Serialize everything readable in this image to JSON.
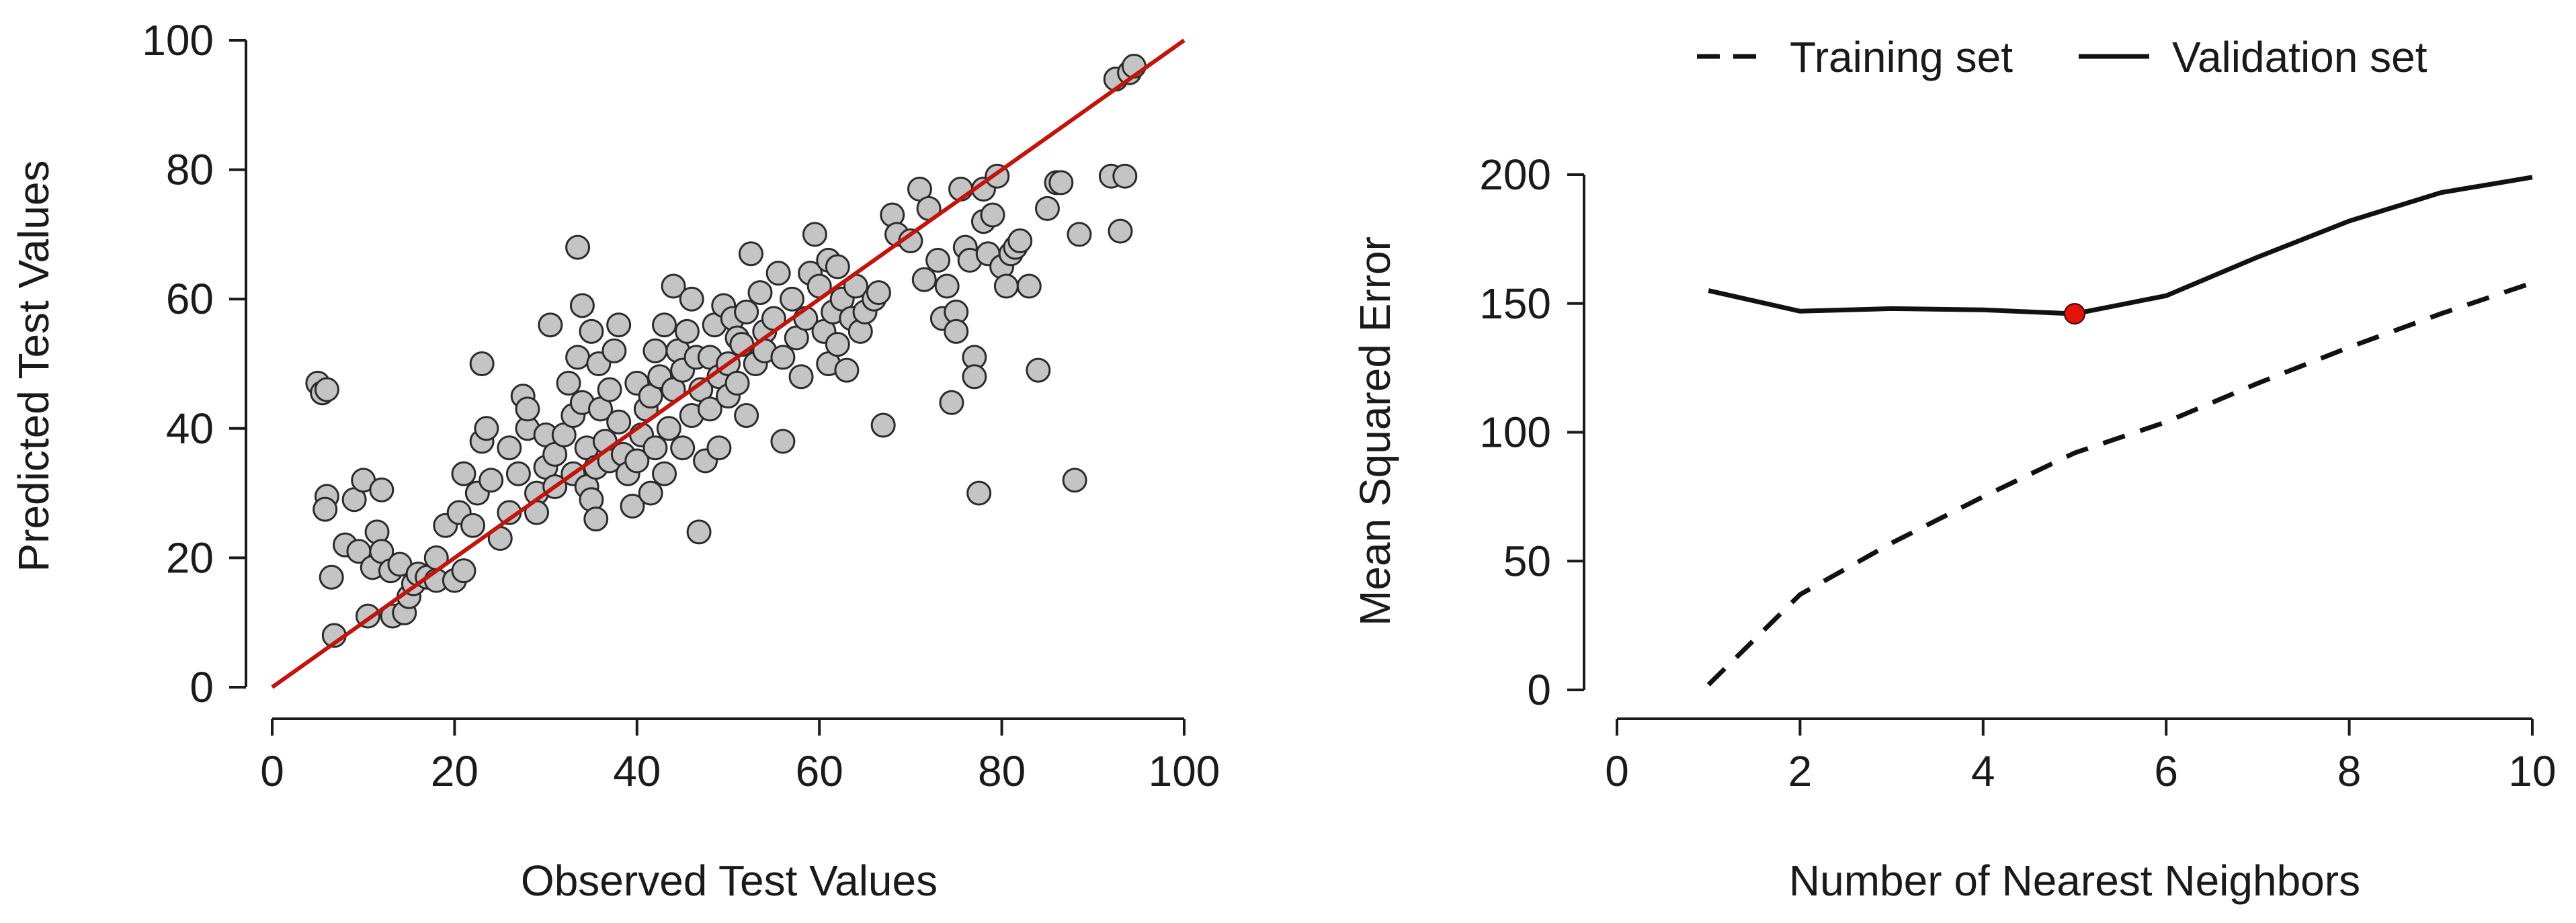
{
  "colors": {
    "point_fill": "#c4c4c4",
    "point_stroke": "#2b2b2b",
    "identity_line": "#c0140c",
    "curve": "#111111",
    "highlight": "#e3120b"
  },
  "chart_data": [
    {
      "type": "scatter",
      "xlabel": "Observed Test Values",
      "ylabel": "Predicted Test Values",
      "xlim": [
        0,
        100
      ],
      "ylim": [
        0,
        100
      ],
      "xticks": [
        0,
        20,
        40,
        60,
        80,
        100
      ],
      "yticks": [
        0,
        20,
        40,
        60,
        80,
        100
      ],
      "grid": false,
      "reference_line": {
        "from": [
          0,
          0
        ],
        "to": [
          100,
          100
        ],
        "label": ""
      },
      "points": [
        [
          5,
          47
        ],
        [
          5.5,
          45.5
        ],
        [
          6,
          46
        ],
        [
          6,
          29.5
        ],
        [
          5.8,
          27.5
        ],
        [
          6.5,
          17
        ],
        [
          6.8,
          8
        ],
        [
          8,
          22
        ],
        [
          9,
          29
        ],
        [
          10,
          32
        ],
        [
          9.5,
          21
        ],
        [
          10.5,
          11
        ],
        [
          11,
          18.5
        ],
        [
          11.5,
          24
        ],
        [
          12,
          30.5
        ],
        [
          12,
          21
        ],
        [
          13,
          18
        ],
        [
          13.2,
          11
        ],
        [
          14,
          19
        ],
        [
          14.5,
          11.5
        ],
        [
          15,
          14
        ],
        [
          15.5,
          16
        ],
        [
          16,
          17.5
        ],
        [
          17,
          17
        ],
        [
          18,
          20
        ],
        [
          18,
          16.5
        ],
        [
          19,
          25
        ],
        [
          20,
          16.5
        ],
        [
          20.5,
          27
        ],
        [
          21,
          18
        ],
        [
          21,
          33
        ],
        [
          22,
          25
        ],
        [
          22.5,
          30
        ],
        [
          23,
          38
        ],
        [
          23.5,
          40
        ],
        [
          23,
          50
        ],
        [
          24,
          32
        ],
        [
          25,
          23
        ],
        [
          26,
          37
        ],
        [
          26,
          27
        ],
        [
          27,
          33
        ],
        [
          27.5,
          45
        ],
        [
          28,
          40
        ],
        [
          28,
          43
        ],
        [
          29,
          30
        ],
        [
          29,
          27
        ],
        [
          30,
          34
        ],
        [
          30,
          39
        ],
        [
          30.5,
          56
        ],
        [
          31,
          31
        ],
        [
          31,
          36
        ],
        [
          32,
          39
        ],
        [
          32.5,
          47
        ],
        [
          33,
          33
        ],
        [
          33,
          42
        ],
        [
          33.5,
          51
        ],
        [
          33.5,
          68
        ],
        [
          34,
          44
        ],
        [
          34,
          59
        ],
        [
          34.5,
          37
        ],
        [
          34.5,
          31
        ],
        [
          35,
          55
        ],
        [
          35,
          29
        ],
        [
          35.5,
          34
        ],
        [
          35.5,
          26
        ],
        [
          35.8,
          50
        ],
        [
          36,
          43
        ],
        [
          36.5,
          38
        ],
        [
          37,
          46
        ],
        [
          37,
          35
        ],
        [
          37.5,
          52
        ],
        [
          38,
          41
        ],
        [
          38,
          56
        ],
        [
          38.5,
          36
        ],
        [
          39,
          33
        ],
        [
          39.5,
          28
        ],
        [
          40,
          47
        ],
        [
          40,
          35
        ],
        [
          40.5,
          39
        ],
        [
          41,
          43
        ],
        [
          41.5,
          45
        ],
        [
          41.5,
          30
        ],
        [
          42,
          37
        ],
        [
          42,
          52
        ],
        [
          42.5,
          48
        ],
        [
          43,
          33
        ],
        [
          43,
          56
        ],
        [
          43.5,
          40
        ],
        [
          44,
          46
        ],
        [
          44,
          62
        ],
        [
          44.5,
          52
        ],
        [
          45,
          49
        ],
        [
          45,
          37
        ],
        [
          45.5,
          55
        ],
        [
          46,
          42
        ],
        [
          46,
          60
        ],
        [
          46.5,
          51
        ],
        [
          46.8,
          24
        ],
        [
          47,
          46
        ],
        [
          47.5,
          35
        ],
        [
          48,
          51
        ],
        [
          48,
          43
        ],
        [
          48.5,
          56
        ],
        [
          49,
          48
        ],
        [
          49,
          37
        ],
        [
          49.5,
          59
        ],
        [
          50,
          50
        ],
        [
          50,
          45
        ],
        [
          50.5,
          57
        ],
        [
          51,
          47
        ],
        [
          51,
          54
        ],
        [
          51.5,
          53
        ],
        [
          52,
          58
        ],
        [
          52,
          42
        ],
        [
          52.5,
          67
        ],
        [
          53,
          50
        ],
        [
          53.5,
          61
        ],
        [
          54,
          55
        ],
        [
          54,
          52
        ],
        [
          55,
          57
        ],
        [
          55.5,
          64
        ],
        [
          56,
          38
        ],
        [
          56,
          51
        ],
        [
          57,
          60
        ],
        [
          57.5,
          54
        ],
        [
          58,
          48
        ],
        [
          58.5,
          57
        ],
        [
          59,
          64
        ],
        [
          59.5,
          70
        ],
        [
          60,
          62
        ],
        [
          60.5,
          55
        ],
        [
          61,
          66
        ],
        [
          61,
          50
        ],
        [
          61.5,
          58
        ],
        [
          62,
          53
        ],
        [
          62,
          65
        ],
        [
          62.5,
          60
        ],
        [
          63,
          49
        ],
        [
          63.5,
          57
        ],
        [
          64,
          62
        ],
        [
          64.5,
          55
        ],
        [
          65,
          58
        ],
        [
          66,
          60
        ],
        [
          66.5,
          61
        ],
        [
          67,
          40.5
        ],
        [
          68,
          73
        ],
        [
          68.5,
          70
        ],
        [
          70,
          69
        ],
        [
          71,
          77
        ],
        [
          71.5,
          63
        ],
        [
          72,
          74
        ],
        [
          73,
          66
        ],
        [
          73.5,
          57
        ],
        [
          74,
          62
        ],
        [
          74.5,
          44
        ],
        [
          75,
          58
        ],
        [
          75,
          55
        ],
        [
          75.5,
          77
        ],
        [
          76,
          68
        ],
        [
          76.5,
          66
        ],
        [
          77,
          51
        ],
        [
          77,
          48
        ],
        [
          77.5,
          30
        ],
        [
          78,
          72
        ],
        [
          78,
          77
        ],
        [
          78.5,
          67
        ],
        [
          79,
          73
        ],
        [
          79.5,
          79
        ],
        [
          80,
          65
        ],
        [
          80.5,
          62
        ],
        [
          81,
          67
        ],
        [
          81.5,
          68
        ],
        [
          82,
          69
        ],
        [
          83,
          62
        ],
        [
          84,
          49
        ],
        [
          85,
          74
        ],
        [
          86,
          78
        ],
        [
          86.5,
          78
        ],
        [
          88,
          32
        ],
        [
          88.5,
          70
        ],
        [
          92,
          79
        ],
        [
          92.5,
          94
        ],
        [
          93,
          70.5
        ],
        [
          93.5,
          79
        ],
        [
          94,
          95
        ],
        [
          94.5,
          96
        ]
      ]
    },
    {
      "type": "line",
      "xlabel": "Number of Nearest Neighbors",
      "ylabel": "Mean Squared Error",
      "xlim": [
        0,
        10
      ],
      "ylim": [
        0,
        200
      ],
      "xticks": [
        0,
        2,
        4,
        6,
        8,
        10
      ],
      "yticks": [
        0,
        50,
        100,
        150,
        200
      ],
      "grid": false,
      "legend_position": "top",
      "series": [
        {
          "name": "Training set",
          "style": "dashed",
          "x": [
            1,
            2,
            3,
            4,
            5,
            6,
            7,
            8,
            9,
            10
          ],
          "values": [
            2,
            37,
            57,
            75,
            92,
            104,
            119,
            133,
            146,
            158
          ]
        },
        {
          "name": "Validation set",
          "style": "solid",
          "x": [
            1,
            2,
            3,
            4,
            5,
            6,
            7,
            8,
            9,
            10
          ],
          "values": [
            155,
            147,
            148,
            147.5,
            146,
            153,
            168,
            182,
            193,
            199
          ]
        }
      ],
      "highlight": {
        "x": 5,
        "y": 146
      }
    }
  ]
}
